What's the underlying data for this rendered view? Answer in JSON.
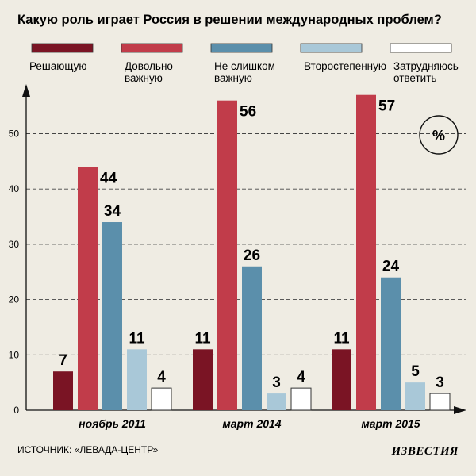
{
  "chart_data": {
    "type": "bar",
    "title": "Какую роль играет Россия в решении международных проблем?",
    "unit": "%",
    "categories": [
      "ноябрь 2011",
      "март 2014",
      "март 2015"
    ],
    "series": [
      {
        "name": "Решающую",
        "legend_lines": [
          "Решающую"
        ],
        "color": "#7a1424",
        "values": [
          7,
          11,
          11
        ]
      },
      {
        "name": "Довольно важную",
        "legend_lines": [
          "Довольно",
          "важную"
        ],
        "color": "#c13c4a",
        "values": [
          44,
          56,
          57
        ]
      },
      {
        "name": "Не слишком важную",
        "legend_lines": [
          "Не слишком",
          "важную"
        ],
        "color": "#5b8fab",
        "values": [
          34,
          26,
          24
        ]
      },
      {
        "name": "Второстепенную",
        "legend_lines": [
          "Второстепенную"
        ],
        "color": "#a9c8d8",
        "values": [
          11,
          3,
          5
        ]
      },
      {
        "name": "Затрудняюсь ответить",
        "legend_lines": [
          "Затрудняюсь",
          "ответить"
        ],
        "color": "#ffffff",
        "values": [
          4,
          4,
          3
        ]
      }
    ],
    "y_ticks": [
      0,
      10,
      20,
      30,
      40,
      50
    ],
    "ylim": [
      0,
      60
    ],
    "grid": "dashed-horizontal",
    "legend_position": "top"
  },
  "source": "ИСТОЧНИК: «ЛЕВАДА-ЦЕНТР»",
  "logo": "ИЗВЕСТИЯ"
}
